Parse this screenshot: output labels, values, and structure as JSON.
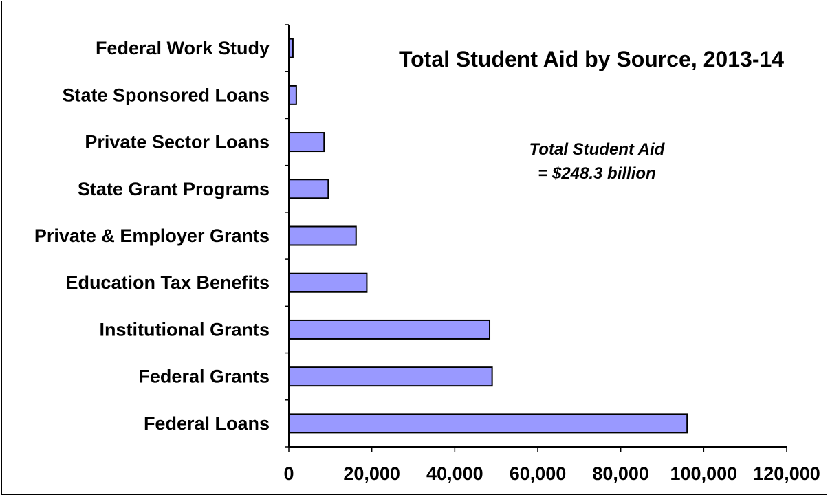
{
  "chart_data": {
    "type": "bar",
    "orientation": "horizontal",
    "title": "Total Student Aid by Source, 2013-14",
    "annotation": [
      "Total Student Aid",
      "= $248.3 billion"
    ],
    "categories": [
      "Federal Work Study",
      "State Sponsored Loans",
      "Private Sector Loans",
      "State Grant Programs",
      "Private & Employer Grants",
      "Education Tax Benefits",
      "Institutional Grants",
      "Federal Grants",
      "Federal Loans"
    ],
    "values": [
      980,
      1800,
      8500,
      9500,
      16200,
      18800,
      48400,
      49000,
      96000
    ],
    "xlim": [
      0,
      120000
    ],
    "xticks": [
      0,
      20000,
      40000,
      60000,
      80000,
      100000,
      120000
    ],
    "xtick_labels": [
      "0",
      "20,000",
      "40,000",
      "60,000",
      "80,000",
      "100,000",
      "120,000"
    ],
    "xlabel": "",
    "ylabel": "",
    "grid": false,
    "legend": "none",
    "bar_color": "#9999ff",
    "bar_edge_color": "#000000"
  }
}
